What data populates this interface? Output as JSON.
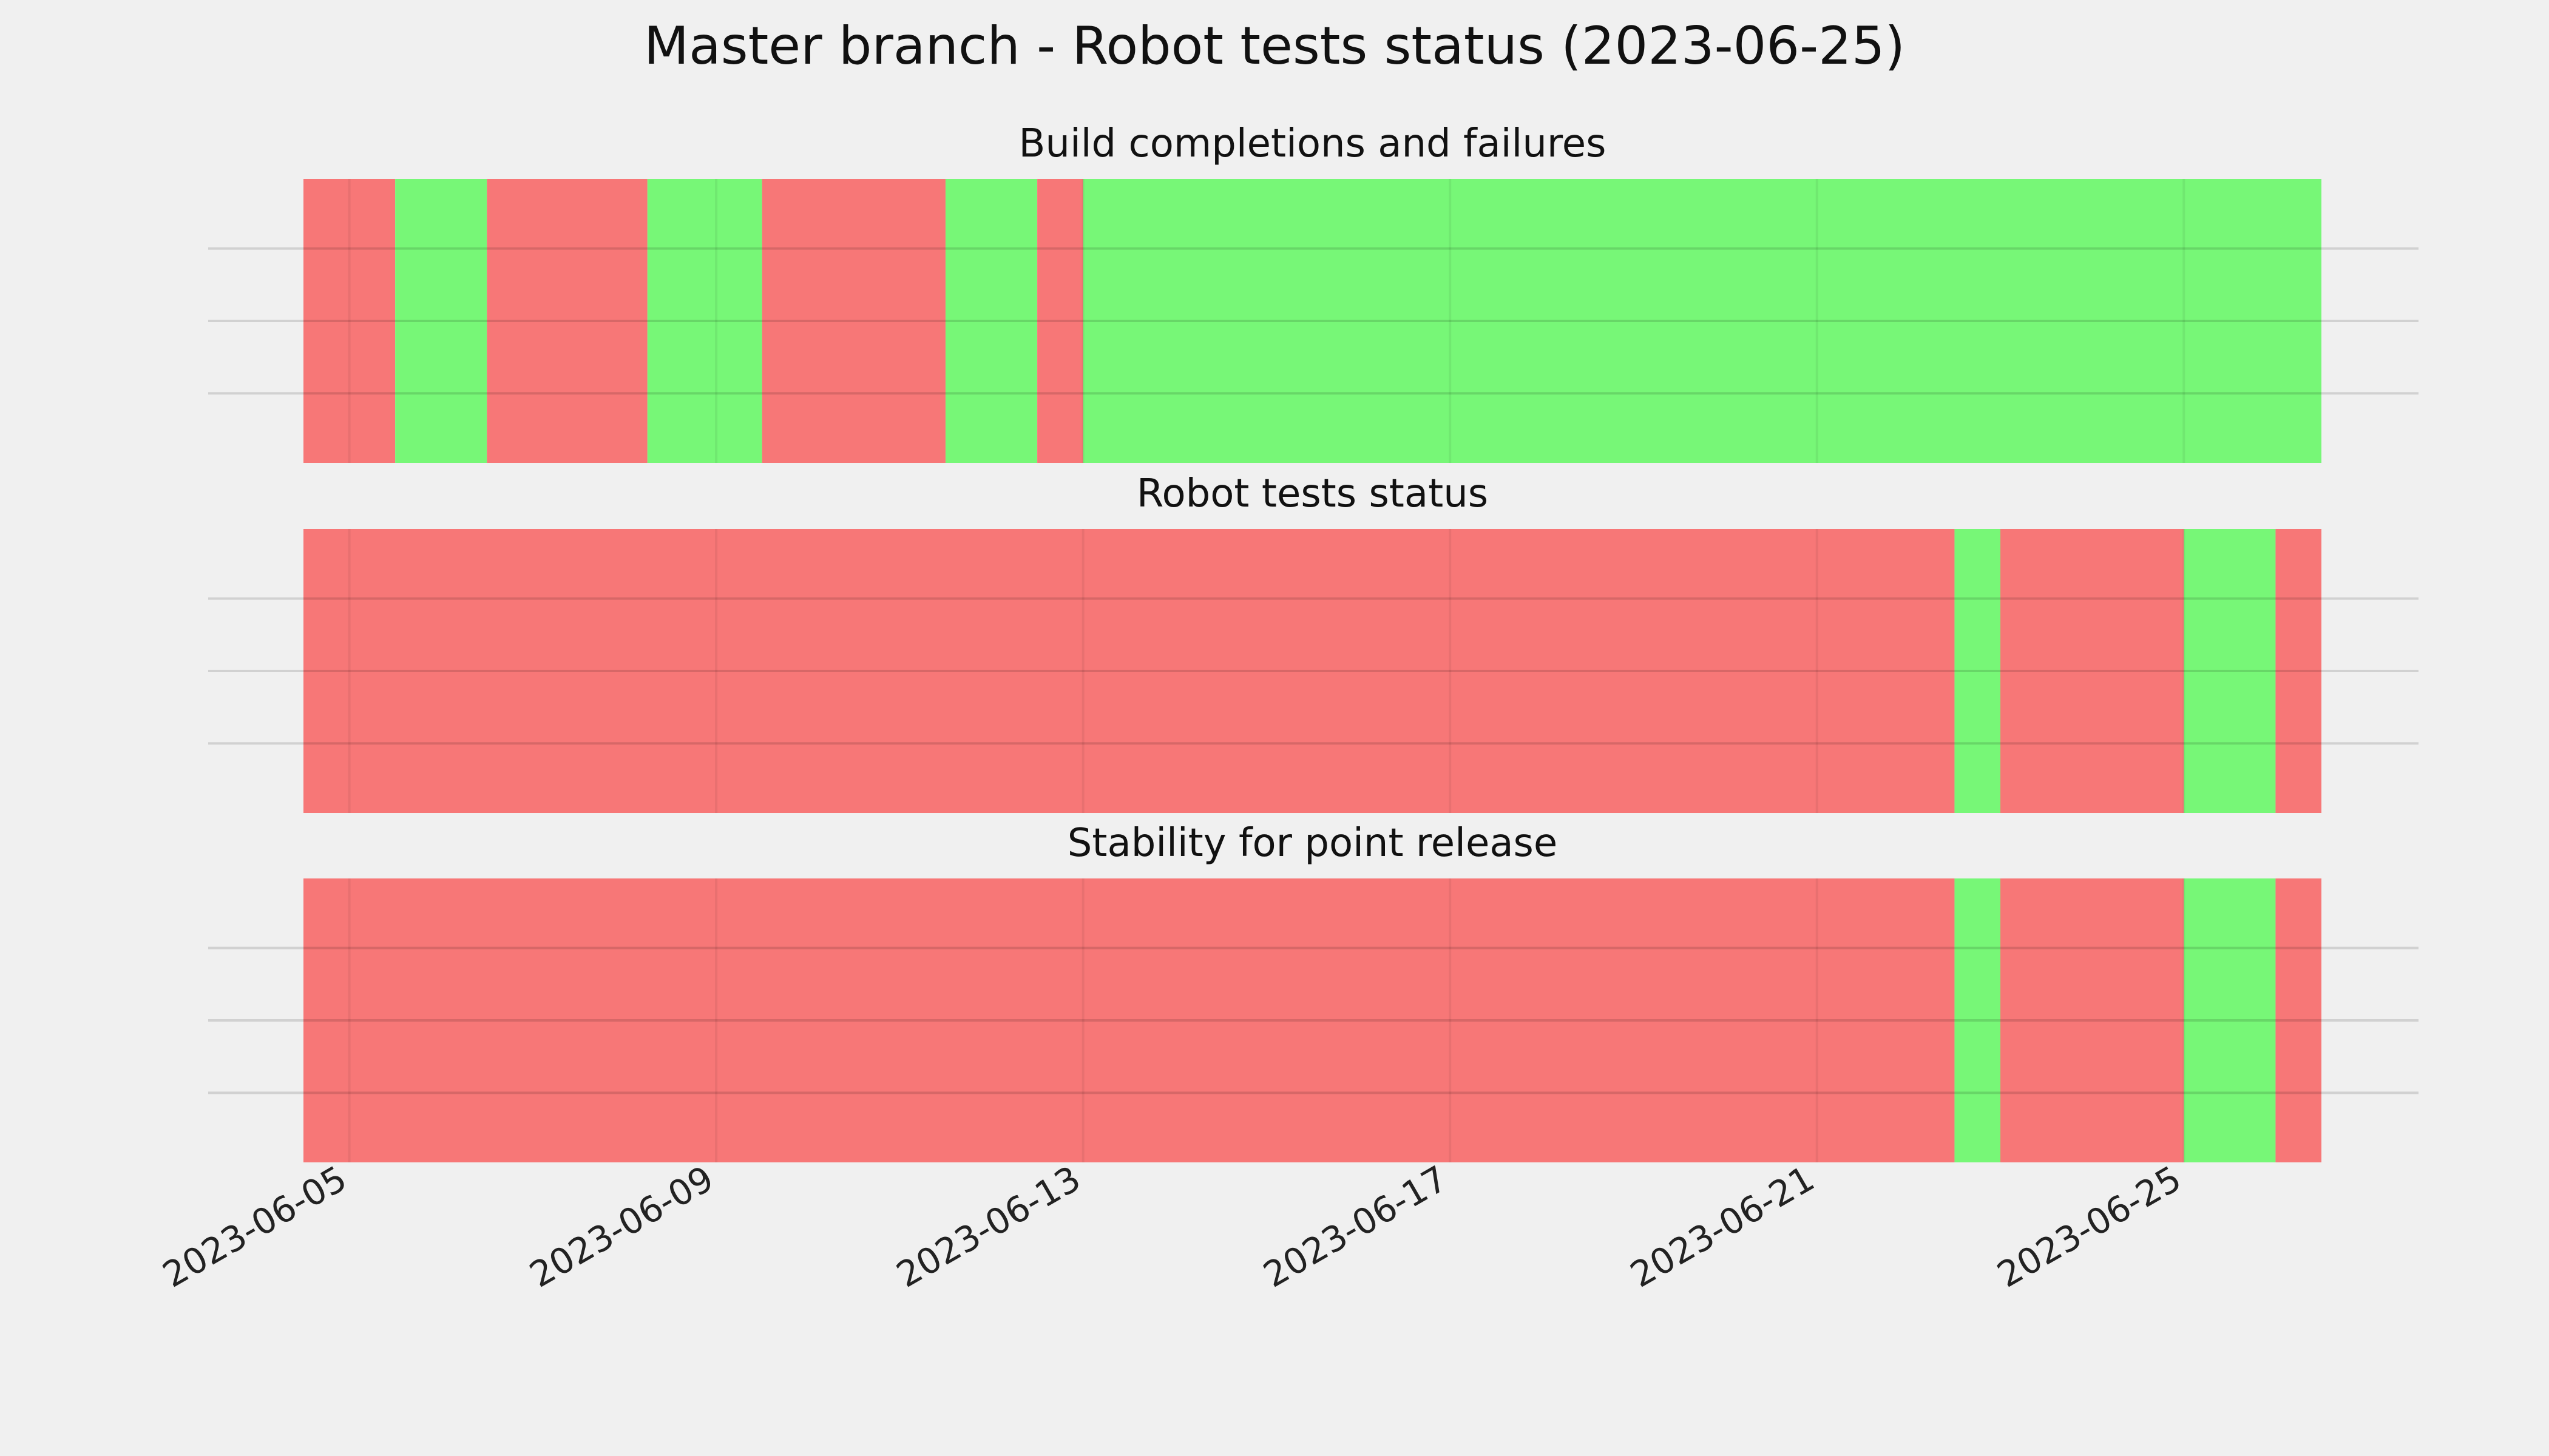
{
  "chart_data": {
    "type": "status-timeline",
    "title": "Master branch - Robot tests status (2023-06-25)",
    "x_axis": {
      "type": "date",
      "range": [
        "2023-06-04 12:00",
        "2023-06-26 12:00"
      ],
      "ticks": [
        "2023-06-05",
        "2023-06-09",
        "2023-06-13",
        "2023-06-17",
        "2023-06-21",
        "2023-06-25"
      ],
      "grid": true
    },
    "y_axis": {
      "tick_labels": false,
      "grid": true
    },
    "status_colors": {
      "failure": "#f77777",
      "success": "#77f777"
    },
    "panels": [
      {
        "title": "Build completions and failures",
        "segments": [
          {
            "start": "2023-06-04 12:00",
            "end": "2023-06-05 12:00",
            "status": "failure"
          },
          {
            "start": "2023-06-05 12:00",
            "end": "2023-06-06 12:00",
            "status": "success"
          },
          {
            "start": "2023-06-06 12:00",
            "end": "2023-06-08 06:00",
            "status": "failure"
          },
          {
            "start": "2023-06-08 06:00",
            "end": "2023-06-09 12:00",
            "status": "success"
          },
          {
            "start": "2023-06-09 12:00",
            "end": "2023-06-11 12:00",
            "status": "failure"
          },
          {
            "start": "2023-06-11 12:00",
            "end": "2023-06-12 12:00",
            "status": "success"
          },
          {
            "start": "2023-06-12 12:00",
            "end": "2023-06-13 00:00",
            "status": "failure"
          },
          {
            "start": "2023-06-13 00:00",
            "end": "2023-06-26 12:00",
            "status": "success"
          }
        ]
      },
      {
        "title": "Robot tests status",
        "segments": [
          {
            "start": "2023-06-04 12:00",
            "end": "2023-06-22 12:00",
            "status": "failure"
          },
          {
            "start": "2023-06-22 12:00",
            "end": "2023-06-23 00:00",
            "status": "success"
          },
          {
            "start": "2023-06-23 00:00",
            "end": "2023-06-25 00:00",
            "status": "failure"
          },
          {
            "start": "2023-06-25 00:00",
            "end": "2023-06-26 00:00",
            "status": "success"
          },
          {
            "start": "2023-06-26 00:00",
            "end": "2023-06-26 12:00",
            "status": "failure"
          }
        ]
      },
      {
        "title": "Stability for point release",
        "segments": [
          {
            "start": "2023-06-04 12:00",
            "end": "2023-06-22 12:00",
            "status": "failure"
          },
          {
            "start": "2023-06-22 12:00",
            "end": "2023-06-23 00:00",
            "status": "success"
          },
          {
            "start": "2023-06-23 00:00",
            "end": "2023-06-25 00:00",
            "status": "failure"
          },
          {
            "start": "2023-06-25 00:00",
            "end": "2023-06-26 00:00",
            "status": "success"
          },
          {
            "start": "2023-06-26 00:00",
            "end": "2023-06-26 12:00",
            "status": "failure"
          }
        ]
      }
    ]
  }
}
